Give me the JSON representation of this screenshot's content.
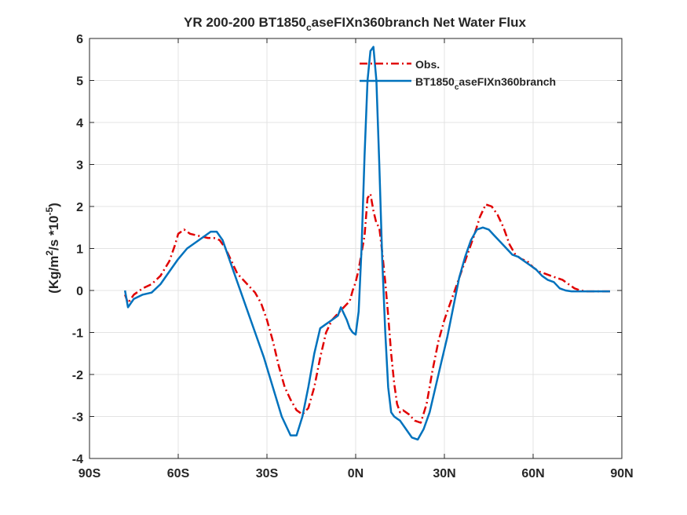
{
  "chart_data": {
    "type": "line",
    "title_parts": {
      "main": "YR 200-200 BT1850",
      "sub": "c",
      "rest": "aseFIXn360branch  Net Water Flux"
    },
    "ylabel_parts": {
      "open": "(Kg/m",
      "sup1": "2",
      "mid": "/s *10",
      "sup2": "-5",
      "close": ")"
    },
    "xlabel": "",
    "xlim": [
      -90,
      90
    ],
    "ylim": [
      -4,
      6
    ],
    "grid": true,
    "legend_position": "top-right",
    "xtick_values": [
      -90,
      -60,
      -30,
      0,
      30,
      60,
      90
    ],
    "xtick_labels": [
      "90S",
      "60S",
      "30S",
      "0N",
      "30N",
      "60N",
      "90N"
    ],
    "ytick_values": [
      -4,
      -3,
      -2,
      -1,
      0,
      1,
      2,
      3,
      4,
      5,
      6
    ],
    "ytick_labels": [
      "-4",
      "-3",
      "-2",
      "-1",
      "0",
      "1",
      "2",
      "3",
      "4",
      "5",
      "6"
    ],
    "series": [
      {
        "name": "Obs.",
        "color": "#e00000",
        "dash": "dashdot",
        "x": [
          -78,
          -77,
          -75,
          -72,
          -69,
          -66,
          -63,
          -61,
          -60,
          -58,
          -56,
          -53,
          -50,
          -48,
          -46,
          -44,
          -42,
          -40,
          -38,
          -36,
          -34,
          -32,
          -30,
          -28,
          -26,
          -24,
          -22,
          -20,
          -18,
          -16,
          -14,
          -12,
          -10,
          -8,
          -6,
          -4,
          -2,
          -1,
          0,
          1,
          2,
          3,
          4,
          5,
          6,
          7,
          8,
          9,
          10,
          11,
          12,
          13,
          14,
          15,
          16,
          18,
          20,
          22,
          24,
          26,
          28,
          30,
          32,
          34,
          36,
          38,
          40,
          42,
          44,
          46,
          48,
          50,
          52,
          54,
          56,
          58,
          60,
          62,
          64,
          66,
          68,
          70,
          72,
          74,
          76,
          78,
          80,
          82,
          84,
          86
        ],
        "y": [
          -0.1,
          -0.3,
          -0.1,
          0.05,
          0.15,
          0.35,
          0.7,
          1.1,
          1.35,
          1.45,
          1.35,
          1.3,
          1.25,
          1.25,
          1.2,
          1.0,
          0.7,
          0.4,
          0.25,
          0.1,
          -0.05,
          -0.3,
          -0.7,
          -1.2,
          -1.8,
          -2.3,
          -2.6,
          -2.85,
          -2.95,
          -2.8,
          -2.3,
          -1.6,
          -1.0,
          -0.7,
          -0.55,
          -0.4,
          -0.25,
          0.0,
          0.2,
          0.5,
          0.9,
          1.3,
          2.2,
          2.3,
          1.9,
          1.6,
          1.5,
          0.9,
          0.2,
          -0.6,
          -1.5,
          -2.2,
          -2.7,
          -2.9,
          -2.85,
          -2.95,
          -3.1,
          -3.15,
          -2.7,
          -1.9,
          -1.2,
          -0.7,
          -0.3,
          0.1,
          0.5,
          0.9,
          1.3,
          1.75,
          2.05,
          2.0,
          1.8,
          1.5,
          1.1,
          0.85,
          0.75,
          0.7,
          0.55,
          0.45,
          0.4,
          0.35,
          0.3,
          0.25,
          0.15,
          0.05,
          0.0,
          -0.02,
          -0.02,
          -0.02,
          -0.02,
          -0.02
        ]
      },
      {
        "name": "BT1850_caseFIXn360branch",
        "name_parts": {
          "main": "BT1850",
          "sub": "c",
          "rest": "aseFIXn360branch"
        },
        "color": "#0072bd",
        "dash": "solid",
        "x": [
          -78,
          -77,
          -75,
          -72,
          -69,
          -66,
          -63,
          -60,
          -57,
          -54,
          -51,
          -49,
          -47,
          -45,
          -43,
          -40,
          -37,
          -34,
          -31,
          -28,
          -25,
          -22,
          -20,
          -18,
          -16,
          -14,
          -12,
          -10,
          -8,
          -6,
          -5,
          -4,
          -3,
          -2,
          -1,
          0,
          1,
          2,
          3,
          4,
          5,
          6,
          7,
          8,
          9,
          10,
          11,
          12,
          13,
          14,
          15,
          17,
          19,
          21,
          23,
          25,
          27,
          29,
          31,
          33,
          35,
          37,
          39,
          41,
          43,
          45,
          47,
          49,
          51,
          53,
          55,
          57,
          59,
          61,
          63,
          65,
          67,
          69,
          71,
          73,
          76,
          80,
          84,
          86
        ],
        "y": [
          0.0,
          -0.4,
          -0.2,
          -0.1,
          -0.05,
          0.15,
          0.45,
          0.75,
          1.0,
          1.15,
          1.3,
          1.4,
          1.4,
          1.2,
          0.8,
          0.2,
          -0.4,
          -1.0,
          -1.6,
          -2.3,
          -3.0,
          -3.45,
          -3.45,
          -3.0,
          -2.3,
          -1.5,
          -0.9,
          -0.8,
          -0.7,
          -0.6,
          -0.4,
          -0.55,
          -0.7,
          -0.9,
          -1.0,
          -1.05,
          -0.5,
          1.0,
          3.2,
          5.0,
          5.7,
          5.8,
          5.0,
          3.0,
          0.7,
          -1.0,
          -2.3,
          -2.9,
          -3.0,
          -3.05,
          -3.1,
          -3.3,
          -3.5,
          -3.55,
          -3.3,
          -2.9,
          -2.3,
          -1.7,
          -1.1,
          -0.4,
          0.3,
          0.8,
          1.2,
          1.45,
          1.5,
          1.45,
          1.3,
          1.15,
          1.0,
          0.85,
          0.8,
          0.7,
          0.6,
          0.5,
          0.35,
          0.25,
          0.2,
          0.05,
          0.0,
          -0.02,
          -0.02,
          -0.02,
          -0.02,
          -0.02
        ]
      }
    ]
  }
}
